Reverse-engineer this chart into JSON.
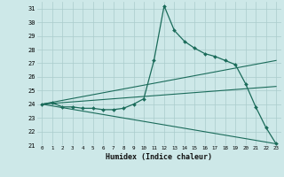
{
  "xlabel": "Humidex (Indice chaleur)",
  "bg_color": "#cde8e8",
  "grid_color": "#aacccc",
  "line_color": "#1a6b5a",
  "xlim": [
    -0.5,
    23.5
  ],
  "ylim": [
    21,
    31.5
  ],
  "xticks": [
    0,
    1,
    2,
    3,
    4,
    5,
    6,
    7,
    8,
    9,
    10,
    11,
    12,
    13,
    14,
    15,
    16,
    17,
    18,
    19,
    20,
    21,
    22,
    23
  ],
  "yticks": [
    21,
    22,
    23,
    24,
    25,
    26,
    27,
    28,
    29,
    30,
    31
  ],
  "line1_x": [
    0,
    1,
    2,
    3,
    4,
    5,
    6,
    7,
    8,
    9,
    10,
    11,
    12,
    13,
    14,
    15,
    16,
    17,
    18,
    19,
    20,
    21,
    22,
    23
  ],
  "line1_y": [
    24.0,
    24.1,
    23.8,
    23.8,
    23.7,
    23.7,
    23.6,
    23.6,
    23.7,
    24.0,
    24.4,
    27.2,
    31.2,
    29.4,
    28.6,
    28.1,
    27.7,
    27.5,
    27.2,
    26.9,
    25.5,
    23.8,
    22.3,
    21.1
  ],
  "line2_x": [
    0,
    23
  ],
  "line2_y": [
    24.0,
    27.2
  ],
  "line3_x": [
    0,
    23
  ],
  "line3_y": [
    24.0,
    25.3
  ],
  "line4_x": [
    0,
    23
  ],
  "line4_y": [
    24.0,
    21.1
  ]
}
